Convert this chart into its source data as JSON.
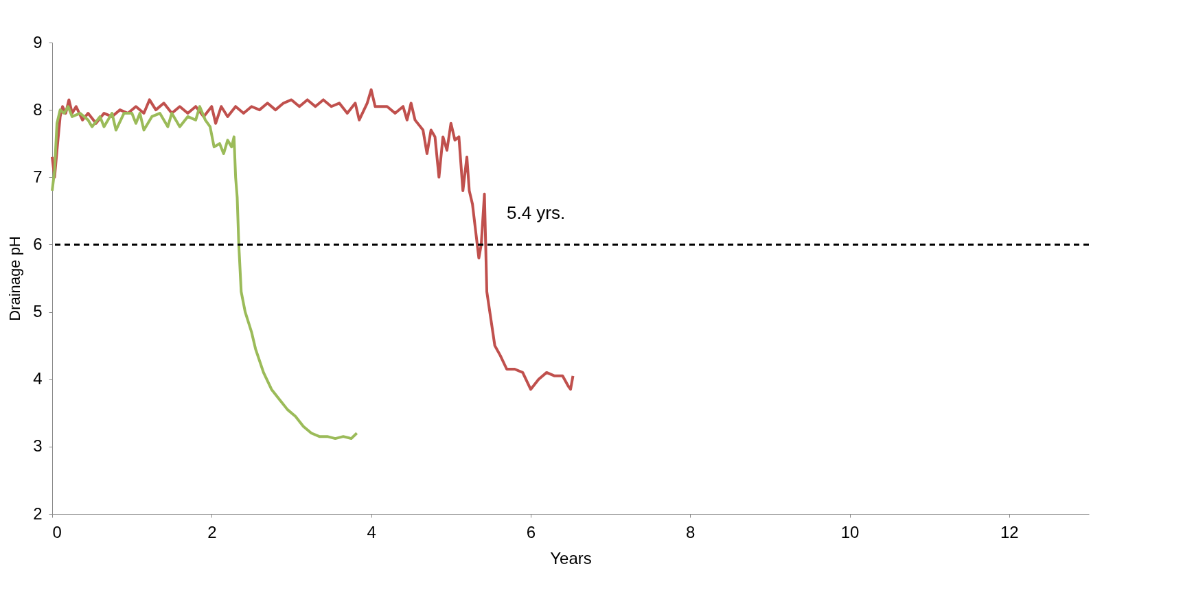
{
  "chart_data": {
    "type": "line",
    "xlabel": "Years",
    "ylabel": "Drainage pH",
    "xlim": [
      0,
      13
    ],
    "xticks": [
      0,
      2,
      4,
      6,
      8,
      10,
      12
    ],
    "ylim": [
      2,
      9
    ],
    "yticks": [
      2,
      3,
      4,
      5,
      6,
      7,
      8,
      9
    ],
    "marker": "none",
    "line_style": "solid",
    "series": [
      {
        "color": "#c0504d",
        "x": [
          0,
          0.03,
          0.06,
          0.1,
          0.13,
          0.17,
          0.21,
          0.25,
          0.3,
          0.38,
          0.45,
          0.55,
          0.65,
          0.75,
          0.85,
          0.95,
          1.05,
          1.15,
          1.22,
          1.3,
          1.4,
          1.5,
          1.6,
          1.7,
          1.8,
          1.9,
          2.0,
          2.05,
          2.12,
          2.2,
          2.3,
          2.4,
          2.5,
          2.6,
          2.7,
          2.8,
          2.9,
          3.0,
          3.1,
          3.2,
          3.3,
          3.4,
          3.5,
          3.6,
          3.7,
          3.8,
          3.85,
          3.95,
          4.0,
          4.05,
          4.2,
          4.3,
          4.4,
          4.45,
          4.5,
          4.55,
          4.65,
          4.7,
          4.75,
          4.8,
          4.85,
          4.9,
          4.95,
          5.0,
          5.05,
          5.1,
          5.15,
          5.2,
          5.23,
          5.27,
          5.3,
          5.35,
          5.38,
          5.42,
          5.45,
          5.5,
          5.55,
          5.62,
          5.7,
          5.8,
          5.9,
          6.0,
          6.1,
          6.2,
          6.3,
          6.4,
          6.47,
          6.5,
          6.53
        ],
        "values": [
          7.3,
          7.0,
          7.4,
          7.9,
          8.05,
          7.95,
          8.15,
          7.95,
          8.05,
          7.85,
          7.95,
          7.8,
          7.95,
          7.9,
          8.0,
          7.95,
          8.05,
          7.95,
          8.15,
          8.0,
          8.1,
          7.95,
          8.05,
          7.95,
          8.05,
          7.9,
          8.05,
          7.8,
          8.05,
          7.9,
          8.05,
          7.95,
          8.05,
          8.0,
          8.1,
          8.0,
          8.1,
          8.15,
          8.05,
          8.15,
          8.05,
          8.15,
          8.05,
          8.1,
          7.95,
          8.1,
          7.85,
          8.1,
          8.3,
          8.05,
          8.05,
          7.95,
          8.05,
          7.85,
          8.1,
          7.85,
          7.7,
          7.35,
          7.7,
          7.6,
          7.0,
          7.6,
          7.4,
          7.8,
          7.55,
          7.6,
          6.8,
          7.3,
          6.8,
          6.6,
          6.3,
          5.8,
          6.0,
          6.75,
          5.3,
          4.9,
          4.5,
          4.35,
          4.15,
          4.15,
          4.1,
          3.85,
          4.0,
          4.1,
          4.05,
          4.05,
          3.9,
          3.85,
          4.05
        ]
      },
      {
        "color": "#9bbb59",
        "x": [
          0,
          0.03,
          0.06,
          0.1,
          0.15,
          0.2,
          0.25,
          0.35,
          0.45,
          0.5,
          0.6,
          0.65,
          0.75,
          0.8,
          0.9,
          1.0,
          1.05,
          1.1,
          1.15,
          1.25,
          1.35,
          1.45,
          1.5,
          1.6,
          1.7,
          1.8,
          1.85,
          1.92,
          1.98,
          2.03,
          2.1,
          2.15,
          2.2,
          2.25,
          2.28,
          2.3,
          2.32,
          2.34,
          2.37,
          2.42,
          2.5,
          2.55,
          2.65,
          2.75,
          2.85,
          2.95,
          3.05,
          3.15,
          3.25,
          3.35,
          3.45,
          3.55,
          3.65,
          3.75,
          3.82
        ],
        "values": [
          6.8,
          7.1,
          7.8,
          8.0,
          7.95,
          8.05,
          7.9,
          7.95,
          7.85,
          7.75,
          7.9,
          7.75,
          7.95,
          7.7,
          7.95,
          7.95,
          7.8,
          7.95,
          7.7,
          7.9,
          7.95,
          7.75,
          7.95,
          7.75,
          7.9,
          7.85,
          8.05,
          7.85,
          7.75,
          7.45,
          7.5,
          7.35,
          7.55,
          7.45,
          7.6,
          7.0,
          6.7,
          6.0,
          5.3,
          5.0,
          4.7,
          4.45,
          4.1,
          3.85,
          3.7,
          3.55,
          3.45,
          3.3,
          3.2,
          3.15,
          3.15,
          3.12,
          3.15,
          3.12,
          3.2
        ]
      }
    ],
    "ref_lines": [
      {
        "axis": "y",
        "value": 6,
        "color": "#000000",
        "line_style": "dashed"
      }
    ],
    "annotations": [
      "5.4 yrs."
    ]
  }
}
